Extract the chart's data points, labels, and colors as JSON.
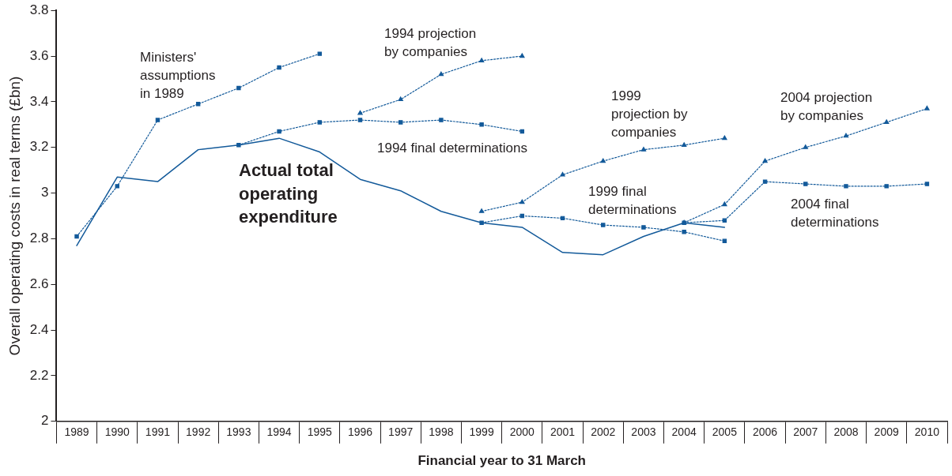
{
  "chart_data": {
    "type": "line",
    "xlabel": "Financial year to 31 March",
    "ylabel": "Overall operating costs in real terms (£bn)",
    "categories": [
      "1989",
      "1990",
      "1991",
      "1992",
      "1993",
      "1994",
      "1995",
      "1996",
      "1997",
      "1998",
      "1999",
      "2000",
      "2001",
      "2002",
      "2003",
      "2004",
      "2005",
      "2006",
      "2007",
      "2008",
      "2009",
      "2010"
    ],
    "ylim": [
      2,
      3.8
    ],
    "yticks": [
      2,
      2.2,
      2.4,
      2.6,
      2.8,
      3,
      3.2,
      3.4,
      3.6,
      3.8
    ],
    "grid": false,
    "legend": false,
    "series": [
      {
        "name": "Actual total operating expenditure",
        "color": "#135a9a",
        "marker": "none",
        "line_style": "solid",
        "values": [
          2.77,
          3.07,
          3.05,
          3.19,
          3.21,
          3.24,
          3.18,
          3.06,
          3.01,
          2.92,
          2.87,
          2.85,
          2.74,
          2.73,
          2.81,
          2.87,
          2.85,
          null,
          null,
          null,
          null,
          null
        ]
      },
      {
        "name": "Ministers' assumptions in 1989",
        "color": "#135a9a",
        "marker": "square",
        "line_style": "dotted",
        "values": [
          2.81,
          3.03,
          3.32,
          3.39,
          3.46,
          3.55,
          3.61,
          null,
          null,
          null,
          null,
          null,
          null,
          null,
          null,
          null,
          null,
          null,
          null,
          null,
          null,
          null
        ]
      },
      {
        "name": "1994 projection by companies",
        "color": "#135a9a",
        "marker": "triangle",
        "line_style": "dotted",
        "values": [
          null,
          null,
          null,
          null,
          null,
          null,
          null,
          3.35,
          3.41,
          3.52,
          3.58,
          3.6,
          null,
          null,
          null,
          null,
          null,
          null,
          null,
          null,
          null,
          null
        ]
      },
      {
        "name": "1994 final determinations",
        "color": "#135a9a",
        "marker": "square",
        "line_style": "dotted",
        "values": [
          null,
          null,
          null,
          null,
          3.21,
          3.27,
          3.31,
          3.32,
          3.31,
          3.32,
          3.3,
          3.27,
          null,
          null,
          null,
          null,
          null,
          null,
          null,
          null,
          null,
          null
        ]
      },
      {
        "name": "1999 projection by companies",
        "color": "#135a9a",
        "marker": "triangle",
        "line_style": "dotted",
        "values": [
          null,
          null,
          null,
          null,
          null,
          null,
          null,
          null,
          null,
          null,
          2.92,
          2.96,
          3.08,
          3.14,
          3.19,
          3.21,
          3.24,
          null,
          null,
          null,
          null,
          null
        ]
      },
      {
        "name": "1999 final determinations",
        "color": "#135a9a",
        "marker": "square",
        "line_style": "dotted",
        "values": [
          null,
          null,
          null,
          null,
          null,
          null,
          null,
          null,
          null,
          null,
          2.87,
          2.9,
          2.89,
          2.86,
          2.85,
          2.83,
          2.79,
          null,
          null,
          null,
          null,
          null
        ]
      },
      {
        "name": "2004 projection by companies",
        "color": "#135a9a",
        "marker": "triangle",
        "line_style": "dotted",
        "values": [
          null,
          null,
          null,
          null,
          null,
          null,
          null,
          null,
          null,
          null,
          null,
          null,
          null,
          null,
          null,
          2.87,
          2.95,
          3.14,
          3.2,
          3.25,
          3.31,
          3.37
        ]
      },
      {
        "name": "2004 final determinations",
        "color": "#135a9a",
        "marker": "square",
        "line_style": "dotted",
        "values": [
          null,
          null,
          null,
          null,
          null,
          null,
          null,
          null,
          null,
          null,
          null,
          null,
          null,
          null,
          null,
          2.87,
          2.88,
          3.05,
          3.04,
          3.03,
          3.03,
          3.04
        ]
      }
    ]
  }
}
